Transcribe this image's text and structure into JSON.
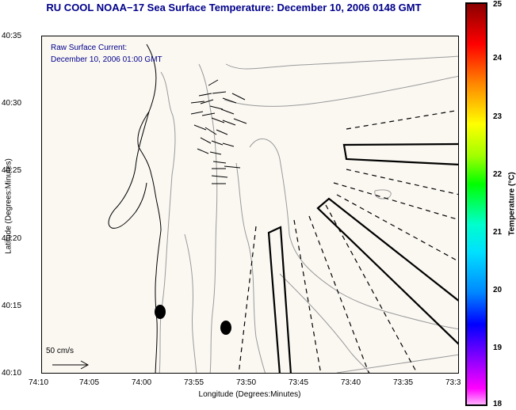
{
  "title": "RU COOL  NOAA−17  Sea Surface Temperature:  December 10, 2006 0148 GMT",
  "subtitle_line1": "Raw Surface Current:",
  "subtitle_line2": "December 10, 2006 01:00 GMT",
  "axes": {
    "ylabel": "Latitude (Degrees:Minutes)",
    "xlabel": "Longitude (Degrees:Minutes)",
    "y_ticks": [
      "40:35",
      "40:30",
      "40:25",
      "40:20",
      "40:15",
      "40:10"
    ],
    "x_ticks": [
      "74:10",
      "74:05",
      "74:00",
      "73:55",
      "73:50",
      "73:45",
      "73:40",
      "73:35",
      "73:3"
    ]
  },
  "colorbar": {
    "title": "Temperature (°C)",
    "ticks": [
      "25",
      "24",
      "23",
      "22",
      "21",
      "20",
      "19",
      "18"
    ],
    "range": [
      18,
      25
    ]
  },
  "scale": {
    "label": "50 cm/s"
  },
  "colors": {
    "title": "#00008b",
    "map_background": "#fbf8f2",
    "vectors": "#000000"
  }
}
